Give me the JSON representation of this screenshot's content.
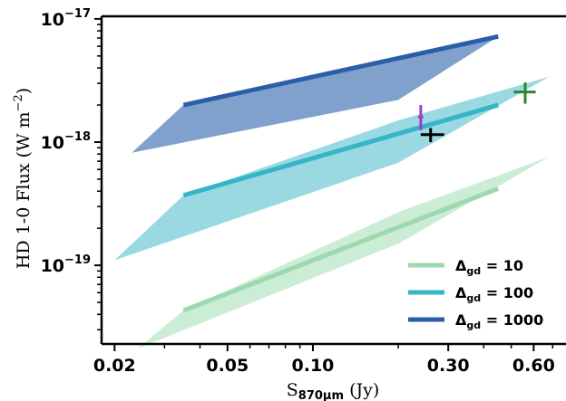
{
  "chart_data": {
    "type": "area",
    "xscale": "log",
    "yscale": "log",
    "xlim": [
      0.018,
      0.78
    ],
    "ylim": [
      2.3e-20,
      1.05e-17
    ],
    "xlabel": "S",
    "xlabel_sub": "870μm",
    "xlabel_unit": " (Jy)",
    "ylabel": "HD 1-0 Flux (W m",
    "ylabel_sup": "−2",
    "ylabel_end": ")",
    "x_ticks": [
      {
        "value": 0.02,
        "label": "0.02"
      },
      {
        "value": 0.05,
        "label": "0.05"
      },
      {
        "value": 0.1,
        "label": "0.10"
      },
      {
        "value": 0.3,
        "label": "0.30"
      },
      {
        "value": 0.6,
        "label": "0.60"
      }
    ],
    "y_ticks": [
      {
        "value": 1e-19,
        "base": "10",
        "exp": "−19"
      },
      {
        "value": 1e-18,
        "base": "10",
        "exp": "−18"
      },
      {
        "value": 1e-17,
        "base": "10",
        "exp": "−17"
      }
    ],
    "legend_position": "lower-right",
    "series": [
      {
        "name": "Δgd = 10",
        "label_main": "Δ",
        "label_sub": "gd",
        "label_rest": " = 10",
        "line_color": "#9dd8ae",
        "fill_color": "#c5ebd0",
        "line": [
          [
            0.035,
            4.3e-20
          ],
          [
            0.45,
            4.2e-19
          ]
        ],
        "band_upper": [
          [
            0.035,
            4.3e-20
          ],
          [
            0.2,
            2.7e-19
          ],
          [
            0.68,
            7.6e-19
          ]
        ],
        "band_lower": [
          [
            0.68,
            7.6e-19
          ],
          [
            0.2,
            1.5e-19
          ],
          [
            0.024,
            2.1e-20
          ]
        ]
      },
      {
        "name": "Δgd = 100",
        "label_main": "Δ",
        "label_sub": "gd",
        "label_rest": " = 100",
        "line_color": "#36b4c8",
        "fill_color": "#8fd5df",
        "line": [
          [
            0.035,
            3.7e-19
          ],
          [
            0.45,
            2e-18
          ]
        ],
        "band_upper": [
          [
            0.035,
            3.7e-19
          ],
          [
            0.2,
            1.5e-18
          ],
          [
            0.68,
            3.4e-18
          ]
        ],
        "band_lower": [
          [
            0.68,
            3.4e-18
          ],
          [
            0.2,
            6.8e-19
          ],
          [
            0.02,
            1.1e-19
          ]
        ]
      },
      {
        "name": "Δgd = 1000",
        "label_main": "Δ",
        "label_sub": "gd",
        "label_rest": " = 1000",
        "line_color": "#2c5ea8",
        "fill_color": "#7397c8",
        "line": [
          [
            0.035,
            2e-18
          ],
          [
            0.45,
            7.2e-18
          ]
        ],
        "band_upper": [
          [
            0.035,
            2e-18
          ],
          [
            0.2,
            4.6e-18
          ],
          [
            0.45,
            7.2e-18
          ]
        ],
        "band_lower": [
          [
            0.45,
            7.2e-18
          ],
          [
            0.2,
            2.2e-18
          ],
          [
            0.023,
            8.2e-19
          ]
        ]
      }
    ],
    "markers": [
      {
        "color": "#9b3fc6",
        "x": 0.24,
        "y": 1.6e-18,
        "xerr": [
          0.235,
          0.245
        ],
        "yerr": [
          1.25e-18,
          2e-18
        ]
      },
      {
        "color": "#000000",
        "x": 0.26,
        "y": 1.15e-18,
        "xerr": [
          0.24,
          0.29
        ],
        "yerr": [
          1e-18,
          1.3e-18
        ]
      },
      {
        "color": "#2a8a2a",
        "x": 0.56,
        "y": 2.55e-18,
        "xerr": [
          0.51,
          0.61
        ],
        "yerr": [
          2.05e-18,
          3.05e-18
        ]
      }
    ]
  }
}
